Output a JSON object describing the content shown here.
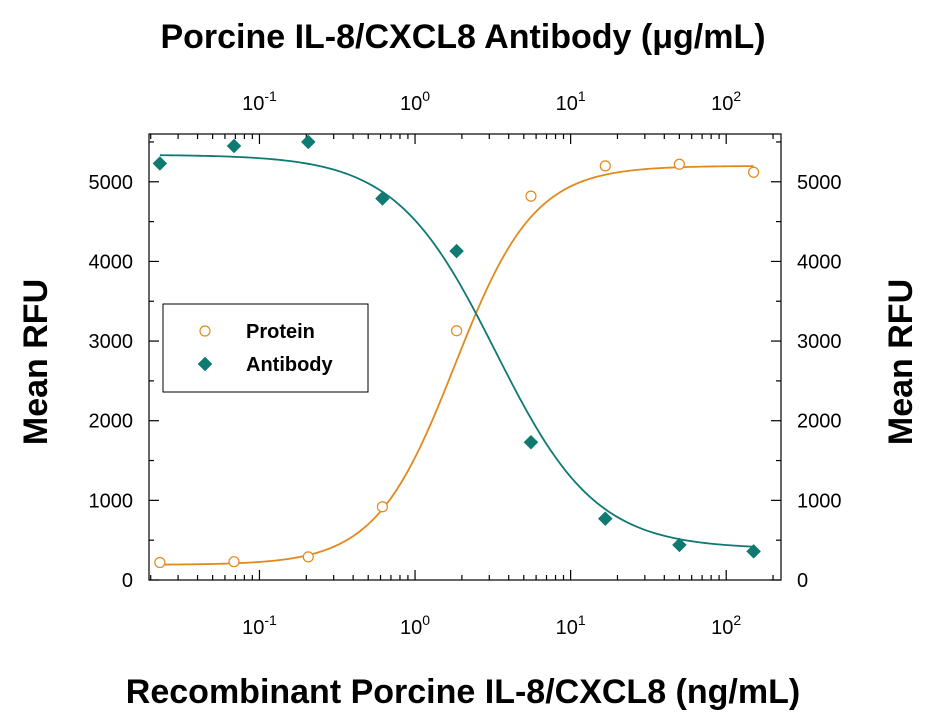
{
  "chart_data": {
    "type": "scatter",
    "title": "Porcine IL-8/CXCL8 Antibody (μg/mL)",
    "xlabel": "Recombinant Porcine IL-8/CXCL8 (ng/mL)",
    "ylabel": "Mean RFU",
    "ylabel_right": "Mean RFU",
    "x_scale": "log",
    "xlim": [
      0.0195,
      225
    ],
    "ylim": [
      0,
      5600
    ],
    "x_ticks": [
      {
        "base": "10",
        "exp": "-1",
        "value": 0.1
      },
      {
        "base": "10",
        "exp": "0",
        "value": 1
      },
      {
        "base": "10",
        "exp": "1",
        "value": 10
      },
      {
        "base": "10",
        "exp": "2",
        "value": 100
      }
    ],
    "y_ticks": [
      "0",
      "1000",
      "2000",
      "3000",
      "4000",
      "5000"
    ],
    "legend_position": "center-left",
    "grid": false,
    "series": [
      {
        "name": "Protein",
        "marker": "open-circle",
        "color": "#e08a1e",
        "x": [
          0.0229,
          0.0686,
          0.206,
          0.617,
          1.85,
          5.56,
          16.7,
          50,
          150
        ],
        "y": [
          220,
          230,
          290,
          920,
          3130,
          4820,
          5200,
          5220,
          5120
        ]
      },
      {
        "name": "Antibody",
        "marker": "filled-diamond",
        "color": "#0e7a72",
        "x": [
          0.0229,
          0.0686,
          0.206,
          0.617,
          1.85,
          5.56,
          16.7,
          50,
          150
        ],
        "y": [
          5230,
          5450,
          5500,
          4790,
          4130,
          1730,
          770,
          440,
          360
        ]
      }
    ],
    "fits": [
      {
        "series": "Protein",
        "bottom": 190,
        "top": 5200,
        "ec50": 1.8,
        "hill": 1.7
      },
      {
        "series": "Antibody",
        "bottom": 390,
        "top": 5340,
        "ec50": 3.3,
        "hill": 1.35
      }
    ]
  }
}
